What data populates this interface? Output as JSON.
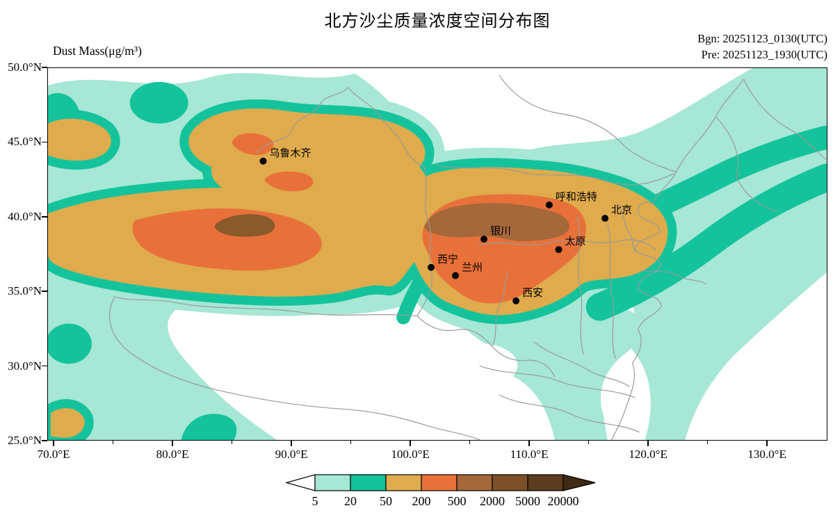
{
  "title": "北方沙尘质量浓度空间分布图",
  "header": {
    "bgn": "Bgn: 20251123_0130(UTC)",
    "pre": "Pre: 20251123_1930(UTC)"
  },
  "map": {
    "units_label": "Dust Mass(μg/m³)",
    "extent": {
      "lon_min": 69.47,
      "lon_max": 135.08,
      "lat_min": 25.0,
      "lat_max": 50.0
    },
    "x_ticks": [
      {
        "label": "70.0°E",
        "value": 70.0
      },
      {
        "label": "80.0°E",
        "value": 80.0
      },
      {
        "label": "90.0°E",
        "value": 90.0
      },
      {
        "label": "100.0°E",
        "value": 100.0
      },
      {
        "label": "110.0°E",
        "value": 110.0
      },
      {
        "label": "120.0°E",
        "value": 120.0
      },
      {
        "label": "130.0°E",
        "value": 130.0
      }
    ],
    "x_minor_step": 5.0,
    "y_ticks": [
      {
        "label": "50.0°N",
        "value": 50.0
      },
      {
        "label": "45.0°N",
        "value": 45.0
      },
      {
        "label": "40.0°N",
        "value": 40.0
      },
      {
        "label": "35.0°N",
        "value": 35.0
      },
      {
        "label": "30.0°N",
        "value": 30.0
      },
      {
        "label": "25.0°N",
        "value": 25.0
      }
    ],
    "cities": [
      {
        "name": "乌鲁木齐",
        "lon": 87.6,
        "lat": 43.75
      },
      {
        "name": "呼和浩特",
        "lon": 111.7,
        "lat": 40.8
      },
      {
        "name": "北京",
        "lon": 116.4,
        "lat": 39.9
      },
      {
        "name": "银川",
        "lon": 106.2,
        "lat": 38.5
      },
      {
        "name": "太原",
        "lon": 112.5,
        "lat": 37.8
      },
      {
        "name": "西宁",
        "lon": 101.75,
        "lat": 36.6
      },
      {
        "name": "兰州",
        "lon": 103.8,
        "lat": 36.05
      },
      {
        "name": "西安",
        "lon": 108.9,
        "lat": 34.35
      }
    ]
  },
  "colorbar": {
    "tick_labels": [
      "5",
      "20",
      "50",
      "200",
      "500",
      "2000",
      "5000",
      "20000"
    ],
    "segment_colors": [
      "#a6e7d5",
      "#14c39c",
      "#dfab4c",
      "#e8713a",
      "#a4683a",
      "#7d5128",
      "#5d3d1f"
    ],
    "under_color": "#ffffff",
    "over_color": "#402a13"
  },
  "palette": {
    "aqua": "#a6e7d5",
    "teal": "#14c39c",
    "gold": "#dfab4c",
    "orange": "#e8713a",
    "brown": "#a4683a",
    "brown_dark": "#8a5a2b",
    "border_grey": "#9a9a9a",
    "frame_black": "#000000"
  },
  "chart_data": {
    "type": "heatmap",
    "subtype": "filled-contour-map",
    "title": "北方沙尘质量浓度空间分布图",
    "colorbar_label": "Dust Mass(μg/m³)",
    "begin_time": "20251123_0130(UTC)",
    "forecast_time": "20251123_1930(UTC)",
    "xlabel_ticks": [
      "70.0°E",
      "80.0°E",
      "90.0°E",
      "100.0°E",
      "110.0°E",
      "120.0°E",
      "130.0°E"
    ],
    "ylabel_ticks": [
      "50.0°N",
      "45.0°N",
      "40.0°N",
      "35.0°N",
      "30.0°N",
      "25.0°N"
    ],
    "xlim": [
      69.47,
      135.08
    ],
    "ylim": [
      25.0,
      50.0
    ],
    "grid": false,
    "legend_position": "bottom-colorbar",
    "contour_levels": [
      5,
      20,
      50,
      200,
      500,
      2000,
      5000,
      20000
    ],
    "band_colors": [
      "#ffffff",
      "#a6e7d5",
      "#14c39c",
      "#dfab4c",
      "#e8713a",
      "#a4683a",
      "#7d5128",
      "#5d3d1f",
      "#402a13"
    ],
    "max_concentration_regions": [
      {
        "approx_location": "85°E, 39.5°N (塔里木盆地东部)",
        "level": "≥2000 μg/m³"
      },
      {
        "approx_location": "104–113°E, 38–41.5°N (银川—呼和浩特一带)",
        "level": "500–2000 μg/m³"
      }
    ],
    "cities": [
      {
        "name": "乌鲁木齐",
        "lon": 87.6,
        "lat": 43.75
      },
      {
        "name": "呼和浩特",
        "lon": 111.7,
        "lat": 40.8
      },
      {
        "name": "北京",
        "lon": 116.4,
        "lat": 39.9
      },
      {
        "name": "银川",
        "lon": 106.2,
        "lat": 38.5
      },
      {
        "name": "太原",
        "lon": 112.5,
        "lat": 37.8
      },
      {
        "name": "西宁",
        "lon": 101.75,
        "lat": 36.6
      },
      {
        "name": "兰州",
        "lon": 103.8,
        "lat": 36.05
      },
      {
        "name": "西安",
        "lon": 108.9,
        "lat": 34.35
      }
    ]
  }
}
